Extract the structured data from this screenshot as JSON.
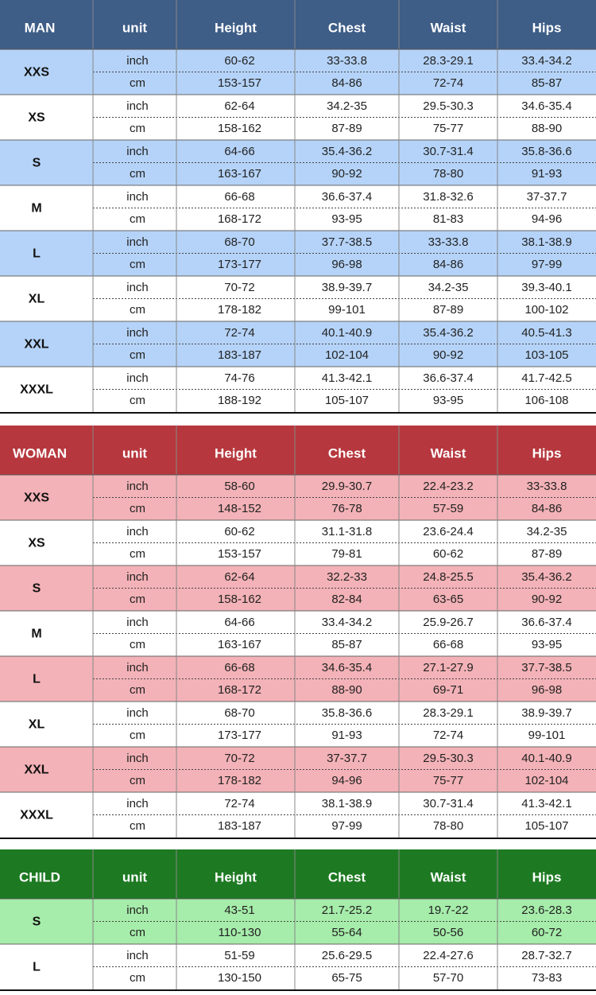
{
  "tables": [
    {
      "header": [
        "MAN",
        "unit",
        "Height",
        "Chest",
        "Waist",
        "Hips"
      ],
      "rows": [
        {
          "size": "XXS",
          "lines": [
            {
              "unit": "inch",
              "values": [
                "60-62",
                "33-33.8",
                "28.3-29.1",
                "33.4-34.2"
              ]
            },
            {
              "unit": "cm",
              "values": [
                "153-157",
                "84-86",
                "72-74",
                "85-87"
              ]
            }
          ]
        },
        {
          "size": "XS",
          "lines": [
            {
              "unit": "inch",
              "values": [
                "62-64",
                "34.2-35",
                "29.5-30.3",
                "34.6-35.4"
              ]
            },
            {
              "unit": "cm",
              "values": [
                "158-162",
                "87-89",
                "75-77",
                "88-90"
              ]
            }
          ]
        },
        {
          "size": "S",
          "lines": [
            {
              "unit": "inch",
              "values": [
                "64-66",
                "35.4-36.2",
                "30.7-31.4",
                "35.8-36.6"
              ]
            },
            {
              "unit": "cm",
              "values": [
                "163-167",
                "90-92",
                "78-80",
                "91-93"
              ]
            }
          ]
        },
        {
          "size": "M",
          "lines": [
            {
              "unit": "inch",
              "values": [
                "66-68",
                "36.6-37.4",
                "31.8-32.6",
                "37-37.7"
              ]
            },
            {
              "unit": "cm",
              "values": [
                "168-172",
                "93-95",
                "81-83",
                "94-96"
              ]
            }
          ]
        },
        {
          "size": "L",
          "lines": [
            {
              "unit": "inch",
              "values": [
                "68-70",
                "37.7-38.5",
                "33-33.8",
                "38.1-38.9"
              ]
            },
            {
              "unit": "cm",
              "values": [
                "173-177",
                "96-98",
                "84-86",
                "97-99"
              ]
            }
          ]
        },
        {
          "size": "XL",
          "lines": [
            {
              "unit": "inch",
              "values": [
                "70-72",
                "38.9-39.7",
                "34.2-35",
                "39.3-40.1"
              ]
            },
            {
              "unit": "cm",
              "values": [
                "178-182",
                "99-101",
                "87-89",
                "100-102"
              ]
            }
          ]
        },
        {
          "size": "XXL",
          "lines": [
            {
              "unit": "inch",
              "values": [
                "72-74",
                "40.1-40.9",
                "35.4-36.2",
                "40.5-41.3"
              ]
            },
            {
              "unit": "cm",
              "values": [
                "183-187",
                "102-104",
                "90-92",
                "103-105"
              ]
            }
          ]
        },
        {
          "size": "XXXL",
          "lines": [
            {
              "unit": "inch",
              "values": [
                "74-76",
                "41.3-42.1",
                "36.6-37.4",
                "41.7-42.5"
              ]
            },
            {
              "unit": "cm",
              "values": [
                "188-192",
                "105-107",
                "93-95",
                "106-108"
              ]
            }
          ]
        }
      ]
    },
    {
      "header": [
        "WOMAN",
        "unit",
        "Height",
        "Chest",
        "Waist",
        "Hips"
      ],
      "rows": [
        {
          "size": "XXS",
          "lines": [
            {
              "unit": "inch",
              "values": [
                "58-60",
                "29.9-30.7",
                "22.4-23.2",
                "33-33.8"
              ]
            },
            {
              "unit": "cm",
              "values": [
                "148-152",
                "76-78",
                "57-59",
                "84-86"
              ]
            }
          ]
        },
        {
          "size": "XS",
          "lines": [
            {
              "unit": "inch",
              "values": [
                "60-62",
                "31.1-31.8",
                "23.6-24.4",
                "34.2-35"
              ]
            },
            {
              "unit": "cm",
              "values": [
                "153-157",
                "79-81",
                "60-62",
                "87-89"
              ]
            }
          ]
        },
        {
          "size": "S",
          "lines": [
            {
              "unit": "inch",
              "values": [
                "62-64",
                "32.2-33",
                "24.8-25.5",
                "35.4-36.2"
              ]
            },
            {
              "unit": "cm",
              "values": [
                "158-162",
                "82-84",
                "63-65",
                "90-92"
              ]
            }
          ]
        },
        {
          "size": "M",
          "lines": [
            {
              "unit": "inch",
              "values": [
                "64-66",
                "33.4-34.2",
                "25.9-26.7",
                "36.6-37.4"
              ]
            },
            {
              "unit": "cm",
              "values": [
                "163-167",
                "85-87",
                "66-68",
                "93-95"
              ]
            }
          ]
        },
        {
          "size": "L",
          "lines": [
            {
              "unit": "inch",
              "values": [
                "66-68",
                "34.6-35.4",
                "27.1-27.9",
                "37.7-38.5"
              ]
            },
            {
              "unit": "cm",
              "values": [
                "168-172",
                "88-90",
                "69-71",
                "96-98"
              ]
            }
          ]
        },
        {
          "size": "XL",
          "lines": [
            {
              "unit": "inch",
              "values": [
                "68-70",
                "35.8-36.6",
                "28.3-29.1",
                "38.9-39.7"
              ]
            },
            {
              "unit": "cm",
              "values": [
                "173-177",
                "91-93",
                "72-74",
                "99-101"
              ]
            }
          ]
        },
        {
          "size": "XXL",
          "lines": [
            {
              "unit": "inch",
              "values": [
                "70-72",
                "37-37.7",
                "29.5-30.3",
                "40.1-40.9"
              ]
            },
            {
              "unit": "cm",
              "values": [
                "178-182",
                "94-96",
                "75-77",
                "102-104"
              ]
            }
          ]
        },
        {
          "size": "XXXL",
          "lines": [
            {
              "unit": "inch",
              "values": [
                "72-74",
                "38.1-38.9",
                "30.7-31.4",
                "41.3-42.1"
              ]
            },
            {
              "unit": "cm",
              "values": [
                "183-187",
                "97-99",
                "78-80",
                "105-107"
              ]
            }
          ]
        }
      ]
    },
    {
      "header": [
        "CHILD",
        "unit",
        "Height",
        "Chest",
        "Waist",
        "Hips"
      ],
      "rows": [
        {
          "size": "S",
          "lines": [
            {
              "unit": "inch",
              "values": [
                "43-51",
                "21.7-25.2",
                "19.7-22",
                "23.6-28.3"
              ]
            },
            {
              "unit": "cm",
              "values": [
                "110-130",
                "55-64",
                "50-56",
                "60-72"
              ]
            }
          ]
        },
        {
          "size": "L",
          "lines": [
            {
              "unit": "inch",
              "values": [
                "51-59",
                "25.6-29.5",
                "22.4-27.6",
                "28.7-32.7"
              ]
            },
            {
              "unit": "cm",
              "values": [
                "130-150",
                "65-75",
                "57-70",
                "73-83"
              ]
            }
          ]
        }
      ]
    }
  ]
}
